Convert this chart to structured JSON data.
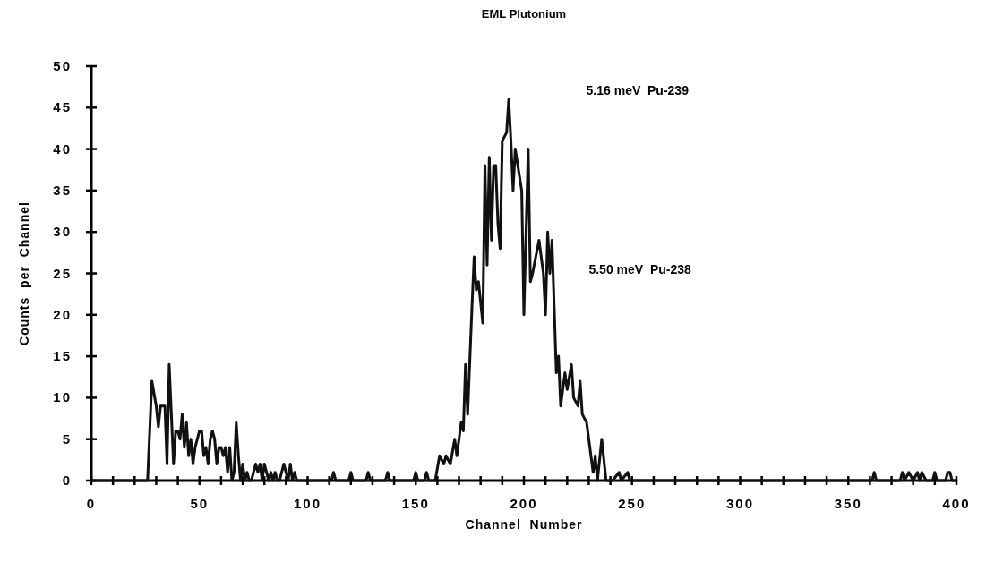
{
  "chart_data": {
    "type": "line",
    "title": "EML Plutonium",
    "xlabel": "Channel  Number",
    "ylabel": "Counts  per  Channel",
    "annotations": [
      "5.16 meV  Pu-239",
      "5.50 meV  Pu-238"
    ],
    "x": [
      0,
      25,
      26,
      28,
      30,
      31,
      32,
      34,
      35,
      36,
      38,
      39,
      40,
      41,
      42,
      43,
      44,
      45,
      46,
      47,
      48,
      49,
      50,
      51,
      52,
      53,
      54,
      55,
      56,
      57,
      58,
      59,
      60,
      61,
      62,
      63,
      64,
      65,
      66,
      67,
      68,
      69,
      70,
      71,
      72,
      73,
      74,
      75,
      76,
      77,
      78,
      79,
      80,
      81,
      82,
      83,
      84,
      85,
      86,
      87,
      88,
      89,
      90,
      91,
      92,
      93,
      94,
      95,
      96,
      111,
      112,
      113,
      119,
      120,
      121,
      127,
      128,
      129,
      136,
      137,
      138,
      149,
      150,
      151,
      154,
      155,
      156,
      158,
      159,
      161,
      163,
      164,
      166,
      168,
      169,
      171,
      172,
      173,
      174,
      176,
      177,
      178,
      179,
      181,
      182,
      183,
      184,
      185,
      186,
      187,
      188,
      189,
      190,
      192,
      193,
      194,
      195,
      196,
      199,
      200,
      202,
      203,
      204,
      207,
      209,
      210,
      211,
      212,
      213,
      215,
      216,
      217,
      219,
      220,
      222,
      223,
      225,
      226,
      227,
      229,
      230,
      232,
      233,
      234,
      236,
      238,
      241,
      244,
      245,
      248,
      249,
      250,
      361,
      362,
      363,
      374,
      375,
      376,
      378,
      380,
      382,
      383,
      384,
      386,
      389,
      390,
      391,
      395,
      396,
      397,
      398,
      400
    ],
    "series": [
      {
        "color": "#111111",
        "values": [
          0,
          0,
          0,
          12,
          9,
          6.5,
          9,
          9,
          2,
          14,
          2,
          6,
          6,
          5,
          8,
          4,
          7,
          3,
          5,
          2,
          4,
          5,
          6,
          6,
          3,
          4,
          2,
          5,
          6,
          5,
          2,
          4,
          4,
          3,
          4,
          1,
          4,
          0,
          1,
          7,
          3,
          0,
          2,
          0,
          1,
          0,
          0,
          1,
          2,
          1,
          2,
          0,
          2,
          1,
          0,
          1,
          0,
          1,
          0,
          0,
          1,
          2,
          1,
          0,
          2,
          0,
          1,
          0,
          0,
          0,
          1,
          0,
          0,
          1,
          0,
          0,
          1,
          0,
          0,
          1,
          0,
          0,
          1,
          0,
          0,
          1,
          0,
          0,
          0,
          3,
          2,
          3,
          2,
          5,
          3,
          7,
          6,
          14,
          8,
          21,
          27,
          23,
          24,
          19,
          38,
          26,
          39,
          29,
          38,
          38,
          31,
          28,
          41,
          42,
          46,
          41,
          35,
          40,
          35,
          20,
          40,
          24,
          25,
          29,
          25,
          20,
          30,
          25,
          29,
          13,
          15,
          9,
          13,
          11,
          14,
          10,
          9,
          12,
          8,
          7,
          5,
          1,
          3,
          0,
          5,
          0,
          0,
          1,
          0,
          1,
          0,
          0,
          0,
          1,
          0,
          0,
          1,
          0,
          1,
          0,
          1,
          0,
          1,
          0,
          0,
          1,
          0,
          0,
          1,
          1,
          0,
          0
        ]
      }
    ],
    "xlim": [
      0,
      400
    ],
    "ylim": [
      0,
      50
    ],
    "xticks": [
      0,
      {
        "value": 10,
        "label": null
      },
      {
        "value": 20,
        "label": null
      },
      {
        "value": 30,
        "label": null
      },
      {
        "value": 40,
        "label": null
      },
      50,
      {
        "value": 60,
        "label": null
      },
      {
        "value": 70,
        "label": null
      },
      {
        "value": 80,
        "label": null
      },
      {
        "value": 90,
        "label": null
      },
      100,
      {
        "value": 110,
        "label": null
      },
      {
        "value": 120,
        "label": null
      },
      {
        "value": 130,
        "label": null
      },
      {
        "value": 140,
        "label": null
      },
      150,
      {
        "value": 160,
        "label": null
      },
      {
        "value": 170,
        "label": null
      },
      {
        "value": 180,
        "label": null
      },
      {
        "value": 190,
        "label": null
      },
      200,
      {
        "value": 210,
        "label": null
      },
      {
        "value": 220,
        "label": null
      },
      {
        "value": 230,
        "label": null
      },
      {
        "value": 240,
        "label": null
      },
      250,
      {
        "value": 260,
        "label": null
      },
      {
        "value": 270,
        "label": null
      },
      {
        "value": 280,
        "label": null
      },
      {
        "value": 290,
        "label": null
      },
      300,
      {
        "value": 310,
        "label": null
      },
      {
        "value": 320,
        "label": null
      },
      {
        "value": 330,
        "label": null
      },
      {
        "value": 340,
        "label": null
      },
      350,
      {
        "value": 360,
        "label": null
      },
      {
        "value": 370,
        "label": null
      },
      {
        "value": 380,
        "label": null
      },
      {
        "value": 390,
        "label": null
      },
      400
    ],
    "yticks": [
      0,
      5,
      10,
      15,
      20,
      25,
      30,
      35,
      40,
      45,
      50
    ],
    "marker": "none",
    "line_style": "solid"
  }
}
